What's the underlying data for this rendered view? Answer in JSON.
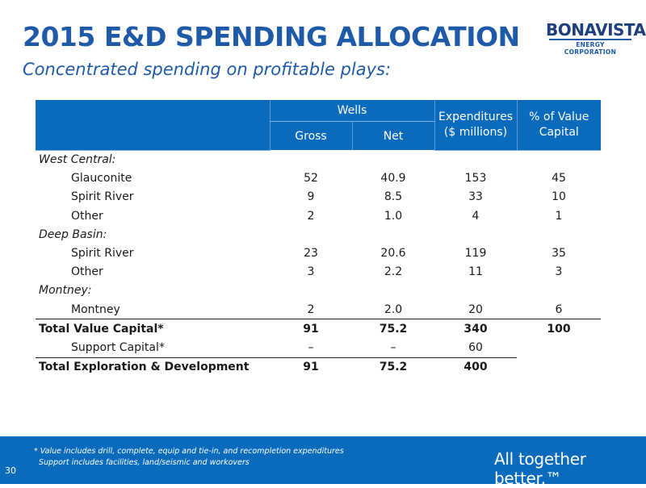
{
  "header": {
    "title": "2015 E&D SPENDING ALLOCATION",
    "subtitle": "Concentrated spending on profitable plays:"
  },
  "logo": {
    "main": "BONAVISTA",
    "sub": "ENERGY CORPORATION"
  },
  "table": {
    "headers": {
      "wells": "Wells",
      "gross": "Gross",
      "net": "Net",
      "expenditures_line1": "Expenditures",
      "expenditures_line2": "($ millions)",
      "pct_line1": "% of Value",
      "pct_line2": "Capital"
    },
    "rows": [
      {
        "label": "West Central:",
        "gross": "",
        "net": "",
        "exp": "",
        "pct": ""
      },
      {
        "label": "Glauconite",
        "gross": "52",
        "net": "40.9",
        "exp": "153",
        "pct": "45"
      },
      {
        "label": "Spirit River",
        "gross": "9",
        "net": "8.5",
        "exp": "33",
        "pct": "10"
      },
      {
        "label": "Other",
        "gross": "2",
        "net": "1.0",
        "exp": "4",
        "pct": "1"
      },
      {
        "label": "Deep Basin:",
        "gross": "",
        "net": "",
        "exp": "",
        "pct": ""
      },
      {
        "label": "Spirit River",
        "gross": "23",
        "net": "20.6",
        "exp": "119",
        "pct": "35"
      },
      {
        "label": "Other",
        "gross": "3",
        "net": "2.2",
        "exp": "11",
        "pct": "3"
      },
      {
        "label": "Montney:",
        "gross": "",
        "net": "",
        "exp": "",
        "pct": ""
      },
      {
        "label": "Montney",
        "gross": "2",
        "net": "2.0",
        "exp": "20",
        "pct": "6"
      },
      {
        "label": "Total Value Capital*",
        "gross": "91",
        "net": "75.2",
        "exp": "340",
        "pct": "100"
      },
      {
        "label": "Support Capital*",
        "gross": "–",
        "net": "–",
        "exp": "60",
        "pct": ""
      },
      {
        "label": "Total Exploration & Development",
        "gross": "91",
        "net": "75.2",
        "exp": "400",
        "pct": ""
      }
    ]
  },
  "footer": {
    "footnote1": "* Value includes drill, complete, equip and tie-in, and recompletion expenditures",
    "footnote2": "Support includes facilities, land/seismic and workovers",
    "page_number": "30",
    "tagline": "All together better.™"
  },
  "colors": {
    "brand_blue": "#1e5aa8",
    "header_blue": "#0a6bbd",
    "logo_navy": "#1e3f7a"
  }
}
